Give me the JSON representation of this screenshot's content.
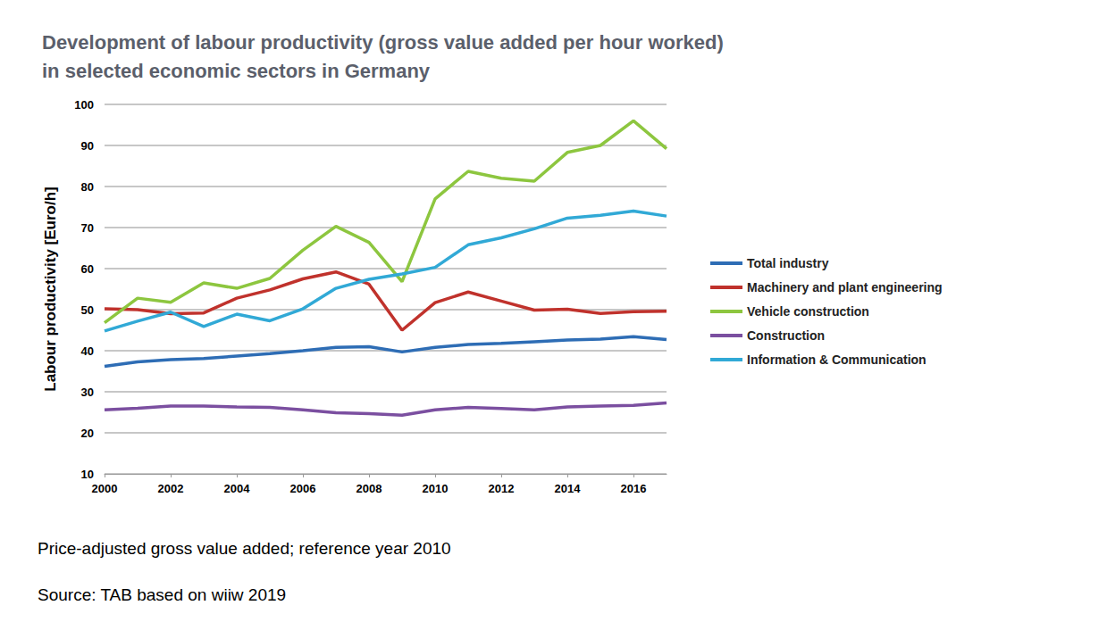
{
  "chart_data": {
    "type": "line",
    "title": "Development of labour productivity (gross value added per hour worked)\nin selected economic sectors in Germany",
    "y_label": "Labour productivity [Euro/h]",
    "annotations": [
      "Price-adjusted gross value added; reference year 2010",
      "Source: TAB based on wiiw 2019"
    ],
    "x": [
      2000,
      2001,
      2002,
      2003,
      2004,
      2005,
      2006,
      2007,
      2008,
      2009,
      2010,
      2011,
      2012,
      2013,
      2014,
      2015,
      2016,
      2017
    ],
    "xlim": [
      2000,
      2017
    ],
    "xticks": [
      2000,
      2002,
      2004,
      2006,
      2008,
      2010,
      2012,
      2014,
      2016
    ],
    "ylim": [
      10,
      100
    ],
    "yticks": [
      10,
      20,
      30,
      40,
      50,
      60,
      70,
      80,
      90,
      100
    ],
    "grid": true,
    "legend": "right",
    "series": [
      {
        "name": "Total industry",
        "color": "#2e6db5",
        "values": [
          36.2,
          37.3,
          37.8,
          38.1,
          38.7,
          39.3,
          40.0,
          40.8,
          41.0,
          39.7,
          40.8,
          41.5,
          41.8,
          42.2,
          42.6,
          42.8,
          43.4,
          42.7
        ]
      },
      {
        "name": "Machinery and plant engineering",
        "color": "#c0322c",
        "values": [
          50.2,
          50.0,
          49.0,
          49.2,
          52.8,
          54.8,
          57.5,
          59.2,
          56.2,
          45.0,
          51.7,
          54.3,
          52.1,
          49.9,
          50.1,
          49.1,
          49.5,
          49.6
        ]
      },
      {
        "name": "Vehicle construction",
        "color": "#8dc63f",
        "values": [
          46.8,
          52.8,
          51.8,
          56.5,
          55.2,
          57.6,
          64.5,
          70.3,
          66.4,
          56.8,
          77.0,
          83.7,
          82.0,
          81.3,
          88.3,
          90.0,
          96.0,
          89.2
        ]
      },
      {
        "name": "Construction",
        "color": "#7b4fa0",
        "values": [
          25.6,
          26.0,
          26.5,
          26.5,
          26.3,
          26.2,
          25.6,
          24.9,
          24.7,
          24.3,
          25.6,
          26.2,
          25.9,
          25.6,
          26.3,
          26.5,
          26.7,
          27.3
        ]
      },
      {
        "name": "Information & Communication",
        "color": "#31a9d6",
        "values": [
          44.8,
          47.2,
          49.4,
          45.9,
          48.9,
          47.3,
          50.2,
          55.2,
          57.4,
          58.7,
          60.3,
          65.8,
          67.5,
          69.7,
          72.3,
          73.0,
          74.0,
          72.8
        ]
      }
    ]
  }
}
